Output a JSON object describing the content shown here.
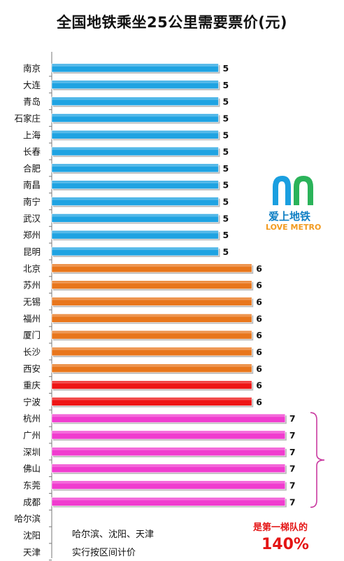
{
  "chart_data": {
    "type": "bar",
    "orientation": "horizontal",
    "title": "全国地铁乘坐25公里需要票价(元)",
    "xlabel": "",
    "ylabel": "",
    "xlim": [
      0,
      7.5
    ],
    "grid": false,
    "categories": [
      "南京",
      "大连",
      "青岛",
      "石家庄",
      "上海",
      "长春",
      "合肥",
      "南昌",
      "南宁",
      "武汉",
      "郑州",
      "昆明",
      "北京",
      "苏州",
      "无锡",
      "福州",
      "厦门",
      "长沙",
      "西安",
      "重庆",
      "宁波",
      "杭州",
      "广州",
      "深圳",
      "佛山",
      "东莞",
      "成都",
      "哈尔滨",
      "沈阳",
      "天津"
    ],
    "values": [
      5,
      5,
      5,
      5,
      5,
      5,
      5,
      5,
      5,
      5,
      5,
      5,
      6,
      6,
      6,
      6,
      6,
      6,
      6,
      6,
      6,
      7,
      7,
      7,
      7,
      7,
      7,
      null,
      null,
      null
    ],
    "value_labels": [
      "5",
      "5",
      "5",
      "5",
      "5",
      "5",
      "5",
      "5",
      "5",
      "5",
      "5",
      "5",
      "6",
      "6",
      "6",
      "6",
      "6",
      "6",
      "6",
      "6",
      "6",
      "7",
      "7",
      "7",
      "7",
      "7",
      "7",
      "",
      "",
      ""
    ],
    "bar_colors": [
      "#1fa3e2",
      "#1fa3e2",
      "#1fa3e2",
      "#1fa3e2",
      "#1fa3e2",
      "#1fa3e2",
      "#1fa3e2",
      "#1fa3e2",
      "#1fa3e2",
      "#1fa3e2",
      "#1fa3e2",
      "#1fa3e2",
      "#e8761c",
      "#e8761c",
      "#e8761c",
      "#e8761c",
      "#e8761c",
      "#e8761c",
      "#e8761c",
      "#ee1515",
      "#ee1515",
      "#f03ccf",
      "#f03ccf",
      "#f03ccf",
      "#f03ccf",
      "#f03ccf",
      "#f03ccf",
      "",
      "",
      ""
    ]
  },
  "notes": {
    "line1": "哈尔滨、沈阳、天津",
    "line2": "实行按区间计价"
  },
  "callout": {
    "line1": "是第一梯队的",
    "line2": "140%"
  },
  "logo": {
    "name_cn": "爱上地铁",
    "name_en": "LOVE METRO",
    "colors": {
      "left": "#1a9fe0",
      "right": "#2bb35a",
      "text": "#0f7fc4",
      "en": "#f29a1f"
    }
  },
  "brace_color": "#c93aa0",
  "label_color": "#111111"
}
